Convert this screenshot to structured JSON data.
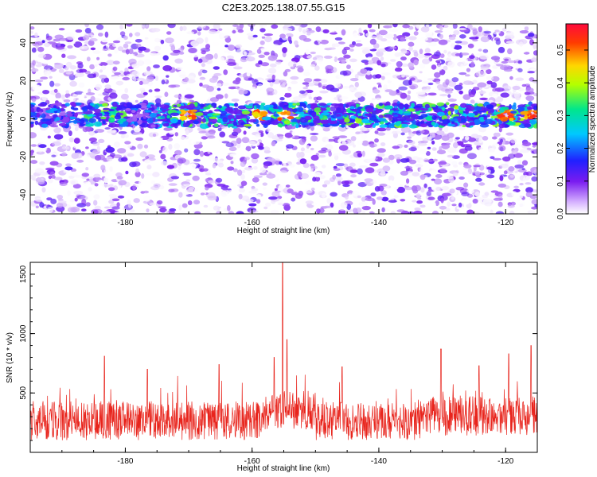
{
  "title": "C2E3.2025.138.07.55.G15",
  "chart_data": [
    {
      "type": "heatmap",
      "xlabel": "Height of straight line (km)",
      "ylabel": "Frequency (Hz)",
      "xlim": [
        -195,
        -115
      ],
      "ylim": [
        -50,
        50
      ],
      "xticks": [
        -180,
        -160,
        -140,
        -120
      ],
      "yticks": [
        -40,
        -20,
        0,
        20,
        40
      ],
      "grid": false,
      "colorbar": {
        "label": "Normalized spectral amplitude",
        "range": [
          0.0,
          0.58
        ],
        "ticks": [
          0.0,
          0.1,
          0.2,
          0.3,
          0.4,
          0.5
        ],
        "colormap": [
          "#ffffff",
          "#7a1cf0",
          "#2020ff",
          "#00c8ff",
          "#00e68c",
          "#b4ff00",
          "#ffd700",
          "#ff3c00",
          "#ff0a3c"
        ]
      },
      "band": {
        "center_hz": 2,
        "half_width_hz": 6,
        "peak_amplitude": 0.55,
        "peaks_km": [
          -170,
          -159,
          -155,
          -120,
          -116
        ]
      }
    },
    {
      "type": "line",
      "xlabel": "Height of straight line (km)",
      "ylabel": "SNR (10 * v/v)",
      "xlim": [
        -195,
        -115
      ],
      "ylim": [
        0,
        1600
      ],
      "xticks": [
        -180,
        -160,
        -140,
        -120
      ],
      "yticks": [
        500,
        1000,
        1500
      ],
      "grid": false,
      "color": "#e8241c",
      "baseline": 250,
      "spikes": [
        {
          "x": -183.3,
          "y": 810
        },
        {
          "x": -176.5,
          "y": 700
        },
        {
          "x": -165.2,
          "y": 740
        },
        {
          "x": -156.5,
          "y": 800
        },
        {
          "x": -155.2,
          "y": 1600
        },
        {
          "x": -154.5,
          "y": 950
        },
        {
          "x": -145.8,
          "y": 720
        },
        {
          "x": -130.2,
          "y": 870
        },
        {
          "x": -124.2,
          "y": 730
        },
        {
          "x": -119.5,
          "y": 830
        },
        {
          "x": -116.0,
          "y": 900
        }
      ]
    }
  ]
}
